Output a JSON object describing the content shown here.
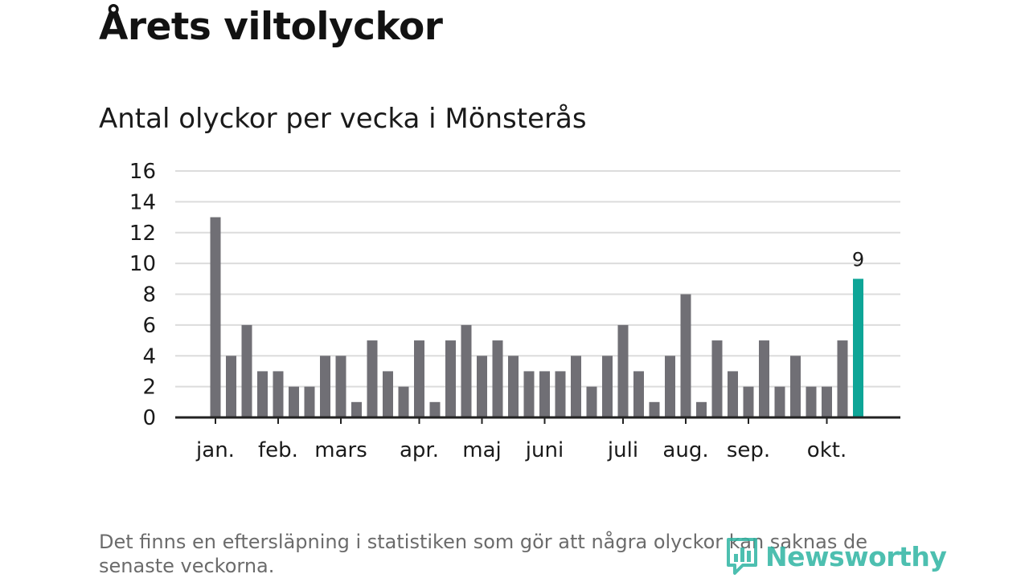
{
  "title": "Årets viltolyckor",
  "subtitle": "Antal olyckor per vecka i Mönsterås",
  "footnote": "Det finns en eftersläpning i statistiken som gör att några olyckor kan saknas de senaste veckorna.",
  "brand": {
    "name": "Newsworthy",
    "icon": "newsworthy-logo-icon"
  },
  "colors": {
    "bar": "#706f75",
    "highlight": "#0ea597",
    "grid": "#dcdcdc",
    "axis": "#222222"
  },
  "chart_data": {
    "type": "bar",
    "title": "Antal olyckor per vecka i Mönsterås",
    "xlabel": "",
    "ylabel": "",
    "ylim": [
      0,
      16
    ],
    "yticks": [
      "0",
      "2",
      "4",
      "6",
      "8",
      "10",
      "12",
      "14",
      "16"
    ],
    "weeks": [
      1,
      2,
      3,
      4,
      5,
      6,
      7,
      8,
      9,
      10,
      11,
      12,
      13,
      14,
      15,
      16,
      17,
      18,
      19,
      20,
      21,
      22,
      23,
      24,
      25,
      26,
      27,
      28,
      29,
      30,
      31,
      32,
      33,
      34,
      35,
      36,
      37,
      38,
      39,
      40,
      41,
      42
    ],
    "values": [
      13,
      4,
      6,
      3,
      3,
      2,
      2,
      4,
      4,
      1,
      5,
      3,
      2,
      5,
      1,
      5,
      6,
      4,
      5,
      4,
      3,
      3,
      3,
      4,
      2,
      4,
      6,
      3,
      1,
      4,
      8,
      1,
      5,
      3,
      2,
      5,
      2,
      4,
      2,
      2,
      5,
      9
    ],
    "highlight_index": 41,
    "highlight_label": "9",
    "month_labels": [
      {
        "label": "jan.",
        "week": 1
      },
      {
        "label": "feb.",
        "week": 5
      },
      {
        "label": "mars",
        "week": 9
      },
      {
        "label": "apr.",
        "week": 14
      },
      {
        "label": "maj",
        "week": 18
      },
      {
        "label": "juni",
        "week": 22
      },
      {
        "label": "juli",
        "week": 27
      },
      {
        "label": "aug.",
        "week": 31
      },
      {
        "label": "sep.",
        "week": 35
      },
      {
        "label": "okt.",
        "week": 40
      }
    ]
  }
}
